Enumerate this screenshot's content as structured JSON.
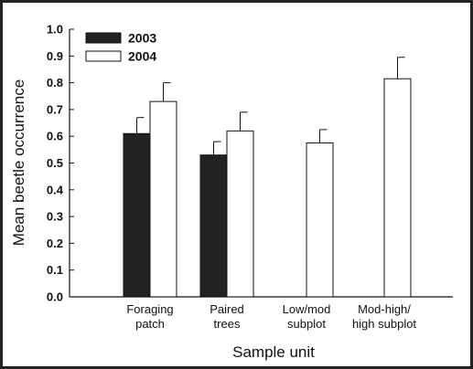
{
  "chart_data": {
    "type": "bar",
    "title": "",
    "xlabel": "Sample unit",
    "ylabel": "Mean beetle occurrence",
    "ylim": [
      0.0,
      1.0
    ],
    "yticks": [
      "0.0",
      "0.1",
      "0.2",
      "0.3",
      "0.4",
      "0.5",
      "0.6",
      "0.7",
      "0.8",
      "0.9",
      "1.0"
    ],
    "categories": [
      [
        "Foraging",
        "patch"
      ],
      [
        "Paired",
        "trees"
      ],
      [
        "Low/mod",
        "subplot"
      ],
      [
        "Mod-high/",
        "high subplot"
      ]
    ],
    "series": [
      {
        "name": "2003",
        "color": "#222222",
        "values": [
          0.61,
          0.53,
          null,
          null
        ],
        "errors": [
          0.06,
          0.05,
          null,
          null
        ]
      },
      {
        "name": "2004",
        "color": "#ffffff",
        "values": [
          0.73,
          0.62,
          0.575,
          0.815
        ],
        "errors": [
          0.07,
          0.07,
          0.05,
          0.08
        ]
      }
    ],
    "legend_position": "top-left",
    "grid": false,
    "error_bars": "upper"
  }
}
